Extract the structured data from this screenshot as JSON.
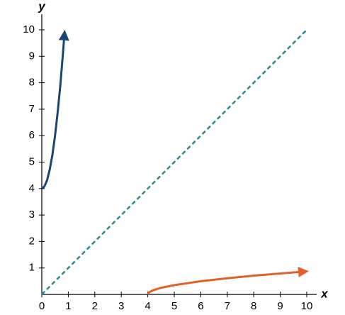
{
  "chart_data": {
    "type": "line",
    "xlabel": "x",
    "ylabel": "y",
    "xlim": [
      0,
      10
    ],
    "ylim": [
      0,
      10
    ],
    "xticks": [
      0,
      1,
      2,
      3,
      4,
      5,
      6,
      7,
      8,
      9,
      10
    ],
    "yticks": [
      1,
      2,
      3,
      4,
      5,
      6,
      7,
      8,
      9,
      10
    ],
    "grid": false,
    "series": [
      {
        "color": "#1b4674",
        "style": "solid",
        "arrow": true,
        "x": [
          0,
          0.1,
          0.2,
          0.3,
          0.4,
          0.5,
          0.6,
          0.7,
          0.8,
          0.86
        ],
        "values": [
          4,
          4.08,
          4.32,
          4.72,
          5.28,
          6,
          6.88,
          7.92,
          9.12,
          9.92
        ]
      },
      {
        "color": "#e0622a",
        "style": "solid",
        "arrow": true,
        "x": [
          4,
          4.05,
          4.2,
          4.5,
          5,
          6,
          7,
          8,
          9,
          10
        ],
        "values": [
          0,
          0.08,
          0.16,
          0.25,
          0.35,
          0.5,
          0.61,
          0.71,
          0.79,
          0.87
        ]
      },
      {
        "color": "#2b8c8c",
        "style": "dashed",
        "arrow": false,
        "x": [
          0,
          10
        ],
        "values": [
          0,
          10
        ]
      }
    ]
  }
}
